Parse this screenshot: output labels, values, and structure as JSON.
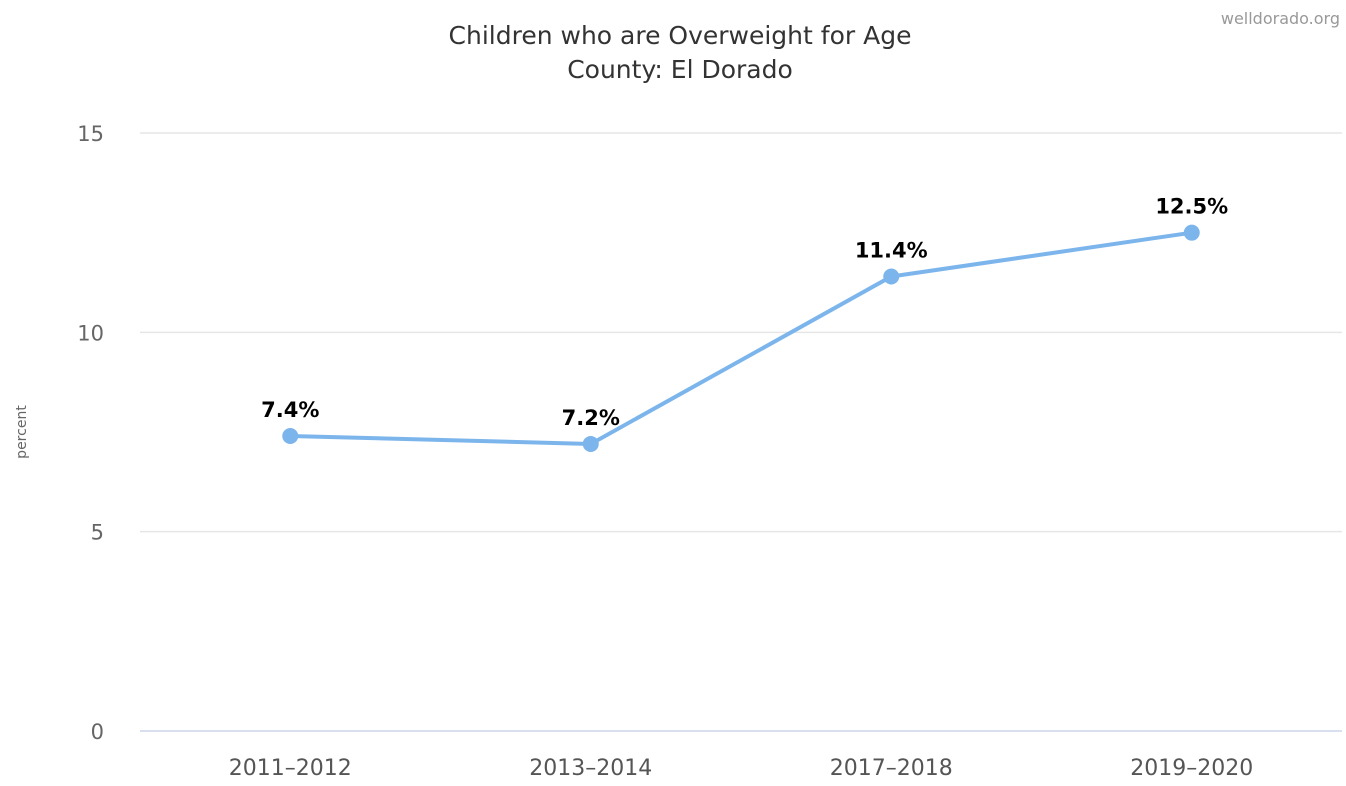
{
  "credit": "welldorado.org",
  "chart_data": {
    "type": "line",
    "title": "Children who are Overweight for Age",
    "subtitle": "County: El Dorado",
    "xlabel": "",
    "ylabel": "percent",
    "categories": [
      "2011-2012",
      "2013-2014",
      "2017-2018",
      "2019-2020"
    ],
    "series": [
      {
        "values": [
          7.4,
          7.2,
          11.4,
          12.5
        ],
        "labels": [
          "7.4%",
          "7.2%",
          "11.4%",
          "12.5%"
        ],
        "color": "#7cb5ec"
      }
    ],
    "ylim": [
      0,
      15
    ],
    "yticks": [
      0,
      5,
      10,
      15
    ],
    "grid": true,
    "legend": "none"
  }
}
